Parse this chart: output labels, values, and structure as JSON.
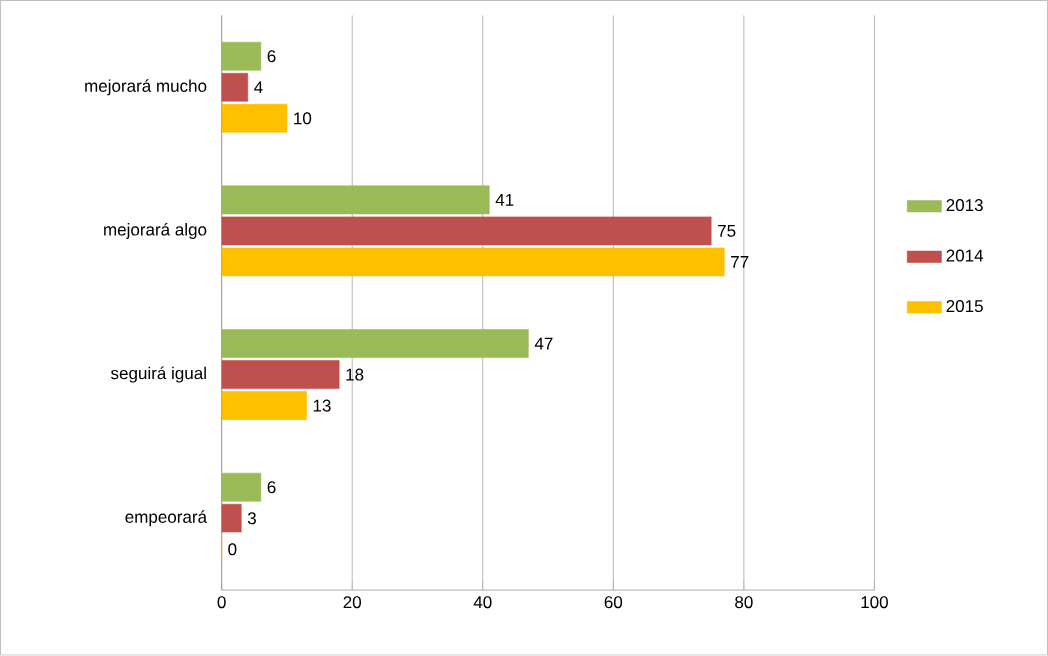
{
  "chart_data": {
    "type": "bar",
    "orientation": "horizontal",
    "categories": [
      "mejorará mucho",
      "mejorará algo",
      "seguirá igual",
      "empeorará"
    ],
    "series": [
      {
        "name": "2013",
        "color": "#9bbb59",
        "values": [
          6,
          41,
          47,
          6
        ]
      },
      {
        "name": "2014",
        "color": "#c0504d",
        "values": [
          4,
          75,
          18,
          3
        ]
      },
      {
        "name": "2015",
        "color": "#ffc000",
        "values": [
          10,
          77,
          13,
          0
        ]
      }
    ],
    "xlim": [
      0,
      100
    ],
    "xticks": [
      0,
      20,
      40,
      60,
      80,
      100
    ],
    "grid": "x",
    "legend": "right",
    "data_labels": true
  }
}
